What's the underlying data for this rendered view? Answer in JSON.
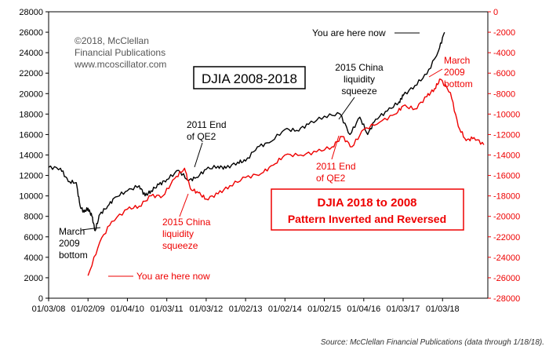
{
  "chart_data": {
    "type": "line",
    "title": "DJIA 2008-2018",
    "inverted_title_line1": "DJIA 2018 to 2008",
    "inverted_title_line2": "Pattern Inverted and Reversed",
    "copyright": [
      "©2018, McClellan",
      "Financial Publications",
      "www.mcoscillator.com"
    ],
    "x_ticks": [
      "01/03/08",
      "01/02/09",
      "01/04/10",
      "01/03/11",
      "01/03/12",
      "01/02/13",
      "01/02/14",
      "01/02/15",
      "01/04/16",
      "01/03/17",
      "01/03/18"
    ],
    "left_axis": {
      "ylim": [
        0,
        28000
      ],
      "ticks": [
        0,
        2000,
        4000,
        6000,
        8000,
        10000,
        12000,
        14000,
        16000,
        18000,
        20000,
        22000,
        24000,
        26000,
        28000
      ]
    },
    "right_axis": {
      "ylim": [
        -28000,
        0
      ],
      "ticks": [
        0,
        -2000,
        -4000,
        -6000,
        -8000,
        -10000,
        -12000,
        -14000,
        -16000,
        -18000,
        -20000,
        -22000,
        -24000,
        -26000,
        -28000
      ],
      "color": "#ee0000"
    },
    "series": [
      {
        "color": "#000000",
        "axis": "left",
        "x": [
          2008.0,
          2008.3,
          2008.5,
          2008.7,
          2008.8,
          2008.9,
          2009.0,
          2009.1,
          2009.18,
          2009.3,
          2009.5,
          2009.7,
          2010.0,
          2010.3,
          2010.45,
          2010.6,
          2010.8,
          2011.0,
          2011.3,
          2011.55,
          2011.75,
          2012.0,
          2012.3,
          2012.5,
          2012.8,
          2013.0,
          2013.3,
          2013.6,
          2014.0,
          2014.3,
          2014.6,
          2015.0,
          2015.4,
          2015.65,
          2015.9,
          2016.1,
          2016.3,
          2016.6,
          2016.9,
          2017.0,
          2017.3,
          2017.6,
          2017.9,
          2018.05
        ],
        "values": [
          12800,
          12700,
          11400,
          11300,
          9000,
          8400,
          8800,
          8000,
          6600,
          8200,
          9000,
          9900,
          10500,
          11000,
          10000,
          10500,
          11100,
          11600,
          12500,
          11500,
          11800,
          12600,
          12900,
          12700,
          13300,
          13400,
          14800,
          15200,
          16500,
          16400,
          17000,
          17800,
          18000,
          16000,
          17700,
          16000,
          17500,
          18300,
          19200,
          19800,
          20800,
          21900,
          24200,
          26000
        ]
      },
      {
        "color": "#ee0000",
        "axis": "right",
        "x": [
          2009.0,
          2009.3,
          2009.6,
          2010.0,
          2010.3,
          2010.6,
          2010.9,
          2011.2,
          2011.45,
          2011.6,
          2011.8,
          2012.0,
          2012.3,
          2012.6,
          2013.0,
          2013.4,
          2013.7,
          2014.0,
          2014.4,
          2014.8,
          2015.2,
          2015.45,
          2015.7,
          2016.0,
          2016.4,
          2016.8,
          2017.0,
          2017.3,
          2017.6,
          2017.8,
          2017.95,
          2018.2,
          2018.4,
          2018.6,
          2018.8,
          2019.05
        ],
        "values": [
          -25800,
          -22500,
          -20500,
          -19300,
          -19000,
          -18000,
          -18000,
          -16300,
          -15300,
          -17300,
          -17700,
          -18300,
          -17800,
          -17000,
          -16200,
          -15800,
          -15000,
          -14000,
          -14000,
          -13700,
          -13200,
          -12200,
          -13200,
          -11500,
          -10800,
          -10000,
          -9200,
          -9500,
          -8300,
          -7500,
          -6600,
          -7900,
          -11200,
          -12600,
          -12300,
          -13000
        ]
      }
    ],
    "annotations": {
      "here_black": "You are here now",
      "here_red": "You are here now",
      "march_black": [
        "March",
        "2009",
        "bottom"
      ],
      "march_red": [
        "March",
        "2009",
        "bottom"
      ],
      "qe2_black": [
        "2011 End",
        "of QE2"
      ],
      "qe2_red": [
        "2011 End",
        "of QE2"
      ],
      "china_black": [
        "2015 China",
        "liquidity",
        "squeeze"
      ],
      "china_red": [
        "2015 China",
        "liquidity",
        "squeeze"
      ]
    }
  },
  "source": "Source: McClellan Financial Publications (data through 1/18/18)."
}
